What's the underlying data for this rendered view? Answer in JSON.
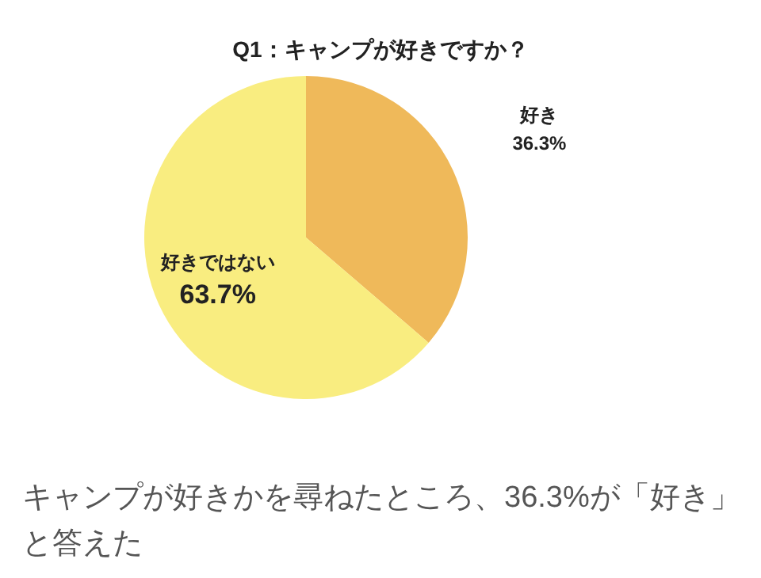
{
  "chart_data": {
    "type": "pie",
    "title": "Q1：キャンプが好きですか？",
    "categories": [
      "好き",
      "好きではない"
    ],
    "values": [
      36.3,
      63.7
    ],
    "colors": [
      "#efb95a",
      "#f9ed80"
    ],
    "value_labels": [
      "36.3%",
      "63.7%"
    ],
    "annotations": [
      "キャンプが好きかを尋ねたところ、36.3%が「好き」と答えた"
    ]
  }
}
